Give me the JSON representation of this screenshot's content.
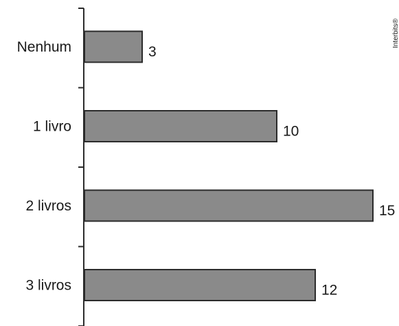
{
  "chart_data": {
    "type": "bar",
    "orientation": "horizontal",
    "categories": [
      "Nenhum",
      "1 livro",
      "2 livros",
      "3 livros"
    ],
    "values": [
      3,
      10,
      15,
      12
    ],
    "title": "",
    "xlabel": "",
    "ylabel": "",
    "xlim": [
      0,
      15
    ],
    "grid": false,
    "colors": {
      "bar_fill": "#8a8a8a",
      "bar_stroke": "#2b2b2b",
      "axis": "#2b2b2b"
    }
  },
  "credit": "Interbits®"
}
